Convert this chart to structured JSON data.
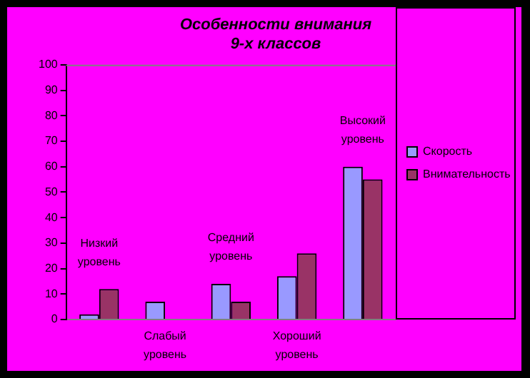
{
  "chart_data": {
    "type": "bar",
    "title": "Особенности внимания\n9-х классов",
    "categories": [
      "Низкий уровень",
      "Слабый уровень",
      "Средний уровень",
      "Хороший уровень",
      "Высокий уровень"
    ],
    "series": [
      {
        "name": "Скорость",
        "color": "#9999ff",
        "values": [
          2,
          7,
          14,
          17,
          60
        ]
      },
      {
        "name": "Внимательность",
        "color": "#993366",
        "values": [
          12,
          null,
          7,
          26,
          55
        ]
      }
    ],
    "ylim": [
      0,
      100
    ],
    "yticks": [
      0,
      10,
      20,
      30,
      40,
      50,
      60,
      70,
      80,
      90,
      100
    ],
    "grid": false,
    "legend": "right"
  }
}
